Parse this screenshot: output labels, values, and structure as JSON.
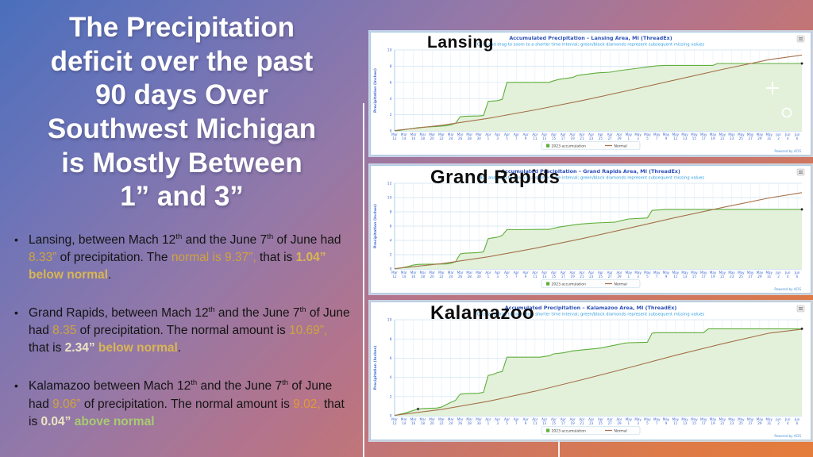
{
  "slide": {
    "title": "The Precipitation\ndeficit over the past\n90 days Over\nSouthwest Michigan\nis  Mostly Between\n1” and  3”",
    "bullets": [
      {
        "segments": [
          {
            "t": "Lansing, between Mach 12",
            "s": "n"
          },
          {
            "t": "th",
            "s": "n",
            "sup": true
          },
          {
            "t": " and the June  7",
            "s": "n"
          },
          {
            "t": "th",
            "s": "n",
            "sup": true
          },
          {
            "t": " of June had ",
            "s": "n"
          },
          {
            "t": "8.33”",
            "s": "gold"
          },
          {
            "t": " of precipitation. The ",
            "s": "n"
          },
          {
            "t": "normal is 9.37”,",
            "s": "gold"
          },
          {
            "t": " that is ",
            "s": "n"
          },
          {
            "t": "1.04” below normal",
            "s": "goldb"
          },
          {
            "t": ".",
            "s": "n"
          }
        ]
      },
      {
        "segments": [
          {
            "t": "Grand Rapids, between Mach 12",
            "s": "n"
          },
          {
            "t": "th",
            "s": "n",
            "sup": true
          },
          {
            "t": " and the June  7",
            "s": "n"
          },
          {
            "t": "th",
            "s": "n",
            "sup": true
          },
          {
            "t": " of June had ",
            "s": "n"
          },
          {
            "t": "8.35",
            "s": "gold"
          },
          {
            "t": " of precipitation. The normal amount is ",
            "s": "n"
          },
          {
            "t": "10.69”,",
            "s": "gold"
          },
          {
            "t": " that is ",
            "s": "n"
          },
          {
            "t": "2.34”",
            "s": "pale"
          },
          {
            "t": " below normal",
            "s": "goldb"
          },
          {
            "t": ".",
            "s": "n"
          }
        ]
      },
      {
        "segments": [
          {
            "t": "Kalamazoo between Mach 12",
            "s": "n"
          },
          {
            "t": "th",
            "s": "n",
            "sup": true
          },
          {
            "t": " and the June  7",
            "s": "n"
          },
          {
            "t": "th",
            "s": "n",
            "sup": true
          },
          {
            "t": " of June had ",
            "s": "n"
          },
          {
            "t": "9.06”",
            "s": "gold"
          },
          {
            "t": " of precipitation. The normal amount ",
            "s": "n"
          },
          {
            "t": "is ",
            "s": "n"
          },
          {
            "t": "9.02,",
            "s": "orange"
          },
          {
            "t": " that is ",
            "s": "n"
          },
          {
            "t": "0.04”",
            "s": "pale"
          },
          {
            "t": " above normal",
            "s": "green"
          }
        ]
      }
    ]
  },
  "text_colors": {
    "body": "#141414",
    "gold": "#cfa43c",
    "gold_bold": "#d9b652",
    "pale_bold": "#ece5c2",
    "orange": "#e09a3c",
    "green_bold": "#a6cc70"
  },
  "xticks": [
    "Mar 12",
    "Mar 14",
    "Mar 16",
    "Mar 18",
    "Mar 20",
    "Mar 22",
    "Mar 24",
    "Mar 26",
    "Mar 28",
    "Mar 30",
    "Apr 1",
    "Apr 3",
    "Apr 5",
    "Apr 7",
    "Apr 9",
    "Apr 11",
    "Apr 13",
    "Apr 15",
    "Apr 17",
    "Apr 19",
    "Apr 21",
    "Apr 23",
    "Apr 25",
    "Apr 27",
    "Apr 29",
    "May 1",
    "May 3",
    "May 5",
    "May 7",
    "May 9",
    "May 11",
    "May 13",
    "May 15",
    "May 17",
    "May 19",
    "May 21",
    "May 23",
    "May 25",
    "May 27",
    "May 29",
    "May 31",
    "Jun 2",
    "Jun 4",
    "Jun 6"
  ],
  "chart_data": [
    {
      "type": "area",
      "city_overlay": "Lansing",
      "title": "Accumulated Precipitation – Lansing Area, MI (ThreadEx)",
      "subtitle": "Click and drag to zoom to a shorter time interval; green/black diamonds represent subsequent missing values",
      "ylabel": "Precipitation (Inches)",
      "ylim": [
        0,
        10
      ],
      "ystep": 2,
      "grid": true,
      "legend_position": "bottom",
      "legend": [
        "2023 accumulation",
        "Normal"
      ],
      "footer": "Powered by ACIS",
      "overlay_icons": true,
      "series": [
        {
          "name": "2023 accumulation",
          "color": "#5fae3d",
          "fill": "#e3f1da",
          "points": [
            [
              0,
              0
            ],
            [
              1,
              0.05
            ],
            [
              3,
              0.25
            ],
            [
              5,
              0.4
            ],
            [
              7,
              0.5
            ],
            [
              9,
              0.55
            ],
            [
              11,
              0.65
            ],
            [
              12,
              0.75
            ],
            [
              13,
              0.95
            ],
            [
              14,
              1.75
            ],
            [
              15,
              1.8
            ],
            [
              18,
              1.85
            ],
            [
              19,
              1.9
            ],
            [
              20,
              3.65
            ],
            [
              21,
              3.7
            ],
            [
              22,
              3.75
            ],
            [
              23,
              3.9
            ],
            [
              24,
              6.0
            ],
            [
              33,
              6.0
            ],
            [
              34,
              6.2
            ],
            [
              35,
              6.35
            ],
            [
              36,
              6.45
            ],
            [
              38,
              6.6
            ],
            [
              39,
              6.85
            ],
            [
              41,
              7.0
            ],
            [
              43,
              7.15
            ],
            [
              44,
              7.2
            ],
            [
              46,
              7.25
            ],
            [
              48,
              7.45
            ],
            [
              50,
              7.6
            ],
            [
              52,
              7.75
            ],
            [
              54,
              7.9
            ],
            [
              56,
              8.05
            ],
            [
              58,
              8.1
            ],
            [
              68,
              8.1
            ],
            [
              69,
              8.33
            ],
            [
              87,
              8.33
            ]
          ]
        },
        {
          "name": "Normal",
          "color": "#a5714a",
          "points": [
            [
              0,
              0.05
            ],
            [
              10,
              0.7
            ],
            [
              20,
              1.55
            ],
            [
              30,
              2.6
            ],
            [
              40,
              3.75
            ],
            [
              50,
              5.0
            ],
            [
              60,
              6.3
            ],
            [
              70,
              7.6
            ],
            [
              80,
              8.8
            ],
            [
              87,
              9.37
            ]
          ]
        }
      ],
      "markers": [
        [
          87,
          8.33
        ]
      ],
      "summary": {
        "observed_in": 8.33,
        "normal_in": 9.37,
        "departure_in": -1.04
      }
    },
    {
      "type": "area",
      "city_overlay": "Grand Rapids",
      "title": "Accumulated Precipitation – Grand Rapids Area, MI (ThreadEx)",
      "subtitle": "Click and drag to zoom to a shorter time interval; green/black diamonds represent subsequent missing values",
      "ylabel": "Precipitation (Inches)",
      "ylim": [
        0,
        12
      ],
      "ystep": 2,
      "grid": true,
      "legend_position": "bottom",
      "legend": [
        "2023 accumulation",
        "Normal"
      ],
      "footer": "Powered by ACIS",
      "overlay_icons": false,
      "series": [
        {
          "name": "2023 accumulation",
          "color": "#5fae3d",
          "fill": "#e3f1da",
          "points": [
            [
              0,
              0
            ],
            [
              1,
              0.1
            ],
            [
              3,
              0.35
            ],
            [
              4,
              0.55
            ],
            [
              5,
              0.65
            ],
            [
              11,
              0.7
            ],
            [
              12,
              0.8
            ],
            [
              13,
              1.0
            ],
            [
              14,
              2.1
            ],
            [
              15,
              2.2
            ],
            [
              18,
              2.3
            ],
            [
              19,
              2.4
            ],
            [
              20,
              4.25
            ],
            [
              21,
              4.35
            ],
            [
              22,
              4.45
            ],
            [
              23,
              4.7
            ],
            [
              24,
              5.5
            ],
            [
              33,
              5.55
            ],
            [
              35,
              5.85
            ],
            [
              37,
              6.05
            ],
            [
              39,
              6.25
            ],
            [
              41,
              6.35
            ],
            [
              43,
              6.45
            ],
            [
              45,
              6.5
            ],
            [
              47,
              6.55
            ],
            [
              49,
              6.85
            ],
            [
              50,
              7.0
            ],
            [
              53,
              7.1
            ],
            [
              54,
              7.15
            ],
            [
              55,
              8.2
            ],
            [
              57,
              8.3
            ],
            [
              58,
              8.35
            ],
            [
              87,
              8.35
            ]
          ]
        },
        {
          "name": "Normal",
          "color": "#a5714a",
          "points": [
            [
              0,
              0.05
            ],
            [
              10,
              0.75
            ],
            [
              20,
              1.7
            ],
            [
              30,
              2.9
            ],
            [
              40,
              4.25
            ],
            [
              50,
              5.7
            ],
            [
              60,
              7.2
            ],
            [
              70,
              8.6
            ],
            [
              80,
              9.95
            ],
            [
              87,
              10.69
            ]
          ]
        }
      ],
      "markers": [
        [
          87,
          8.35
        ]
      ],
      "summary": {
        "observed_in": 8.35,
        "normal_in": 10.69,
        "departure_in": -2.34
      }
    },
    {
      "type": "area",
      "city_overlay": "Kalamazoo",
      "title": "Accumulated Precipitation – Kalamazoo Area, MI (ThreadEx)",
      "subtitle": "Click and drag to zoom to a shorter time interval; green/black diamonds represent subsequent missing values",
      "ylabel": "Precipitation (Inches)",
      "ylim": [
        0,
        10
      ],
      "ystep": 2,
      "grid": true,
      "legend_position": "bottom",
      "legend": [
        "2023 accumulation",
        "Normal"
      ],
      "footer": "Powered by ACIS",
      "overlay_icons": false,
      "series": [
        {
          "name": "2023 accumulation",
          "color": "#5fae3d",
          "fill": "#e3f1da",
          "points": [
            [
              0,
              0
            ],
            [
              1,
              0.15
            ],
            [
              2,
              0.25
            ],
            [
              3,
              0.4
            ],
            [
              5,
              0.7
            ],
            [
              6,
              0.75
            ],
            [
              9,
              0.8
            ],
            [
              10,
              0.9
            ],
            [
              11,
              1.15
            ],
            [
              12,
              1.4
            ],
            [
              13,
              1.6
            ],
            [
              14,
              2.25
            ],
            [
              15,
              2.3
            ],
            [
              18,
              2.35
            ],
            [
              19,
              2.45
            ],
            [
              20,
              4.2
            ],
            [
              21,
              4.3
            ],
            [
              22,
              4.5
            ],
            [
              23,
              4.6
            ],
            [
              24,
              6.1
            ],
            [
              31,
              6.1
            ],
            [
              33,
              6.25
            ],
            [
              34,
              6.45
            ],
            [
              36,
              6.55
            ],
            [
              38,
              6.75
            ],
            [
              40,
              6.85
            ],
            [
              42,
              6.95
            ],
            [
              44,
              7.05
            ],
            [
              46,
              7.25
            ],
            [
              48,
              7.45
            ],
            [
              49,
              7.55
            ],
            [
              50,
              7.6
            ],
            [
              54,
              7.65
            ],
            [
              55,
              8.6
            ],
            [
              56,
              8.65
            ],
            [
              66,
              8.65
            ],
            [
              67,
              9.06
            ],
            [
              87,
              9.06
            ]
          ]
        },
        {
          "name": "Normal",
          "color": "#a5714a",
          "points": [
            [
              0,
              0.05
            ],
            [
              10,
              0.65
            ],
            [
              20,
              1.5
            ],
            [
              30,
              2.55
            ],
            [
              40,
              3.75
            ],
            [
              50,
              5.0
            ],
            [
              60,
              6.3
            ],
            [
              70,
              7.5
            ],
            [
              80,
              8.6
            ],
            [
              87,
              9.02
            ]
          ]
        }
      ],
      "markers": [
        [
          5,
          0.7
        ],
        [
          87,
          9.06
        ]
      ],
      "summary": {
        "observed_in": 9.06,
        "normal_in": 9.02,
        "departure_in": 0.04
      }
    }
  ]
}
